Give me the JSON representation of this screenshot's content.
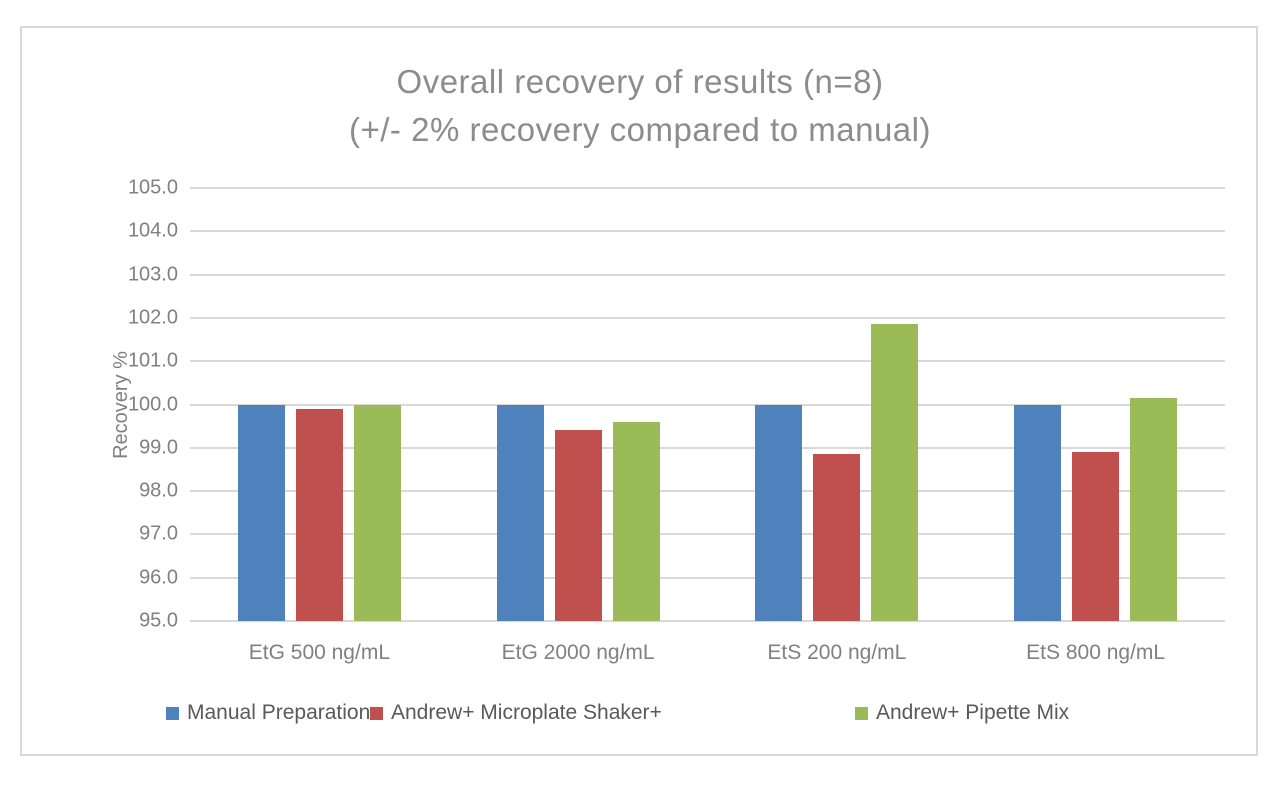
{
  "chart_data": {
    "type": "bar",
    "title_line1": "Overall recovery of results (n=8)",
    "title_line2": "(+/- 2% recovery compared to manual)",
    "ylabel": "Recovery %",
    "ylim": [
      95.0,
      105.0
    ],
    "ytick_labels": [
      "105.0",
      "104.0",
      "103.0",
      "102.0",
      "101.0",
      "100.0",
      "99.0",
      "98.0",
      "97.0",
      "96.0",
      "95.0"
    ],
    "categories": [
      "EtG 500 ng/mL",
      "EtG 2000 ng/mL",
      "EtS 200 ng/mL",
      "EtS 800 ng/mL"
    ],
    "series": [
      {
        "name": "Manual Preparation",
        "color": "#4F81BD",
        "values": [
          100.0,
          100.0,
          100.0,
          100.0
        ]
      },
      {
        "name": "Andrew+ Microplate Shaker+",
        "color": "#C0504D",
        "values": [
          99.9,
          99.4,
          98.85,
          98.9
        ]
      },
      {
        "name": "Andrew+ Pipette Mix",
        "color": "#9BBB59",
        "values": [
          100.0,
          99.6,
          101.85,
          100.15
        ]
      }
    ],
    "grid": true,
    "legend_position": "bottom"
  },
  "colors": {
    "gridline": "#d9d9d9",
    "frame_border": "#d9d9d9",
    "title_text": "#8c8c8c",
    "axis_text": "#808080",
    "legend_text": "#595959"
  }
}
